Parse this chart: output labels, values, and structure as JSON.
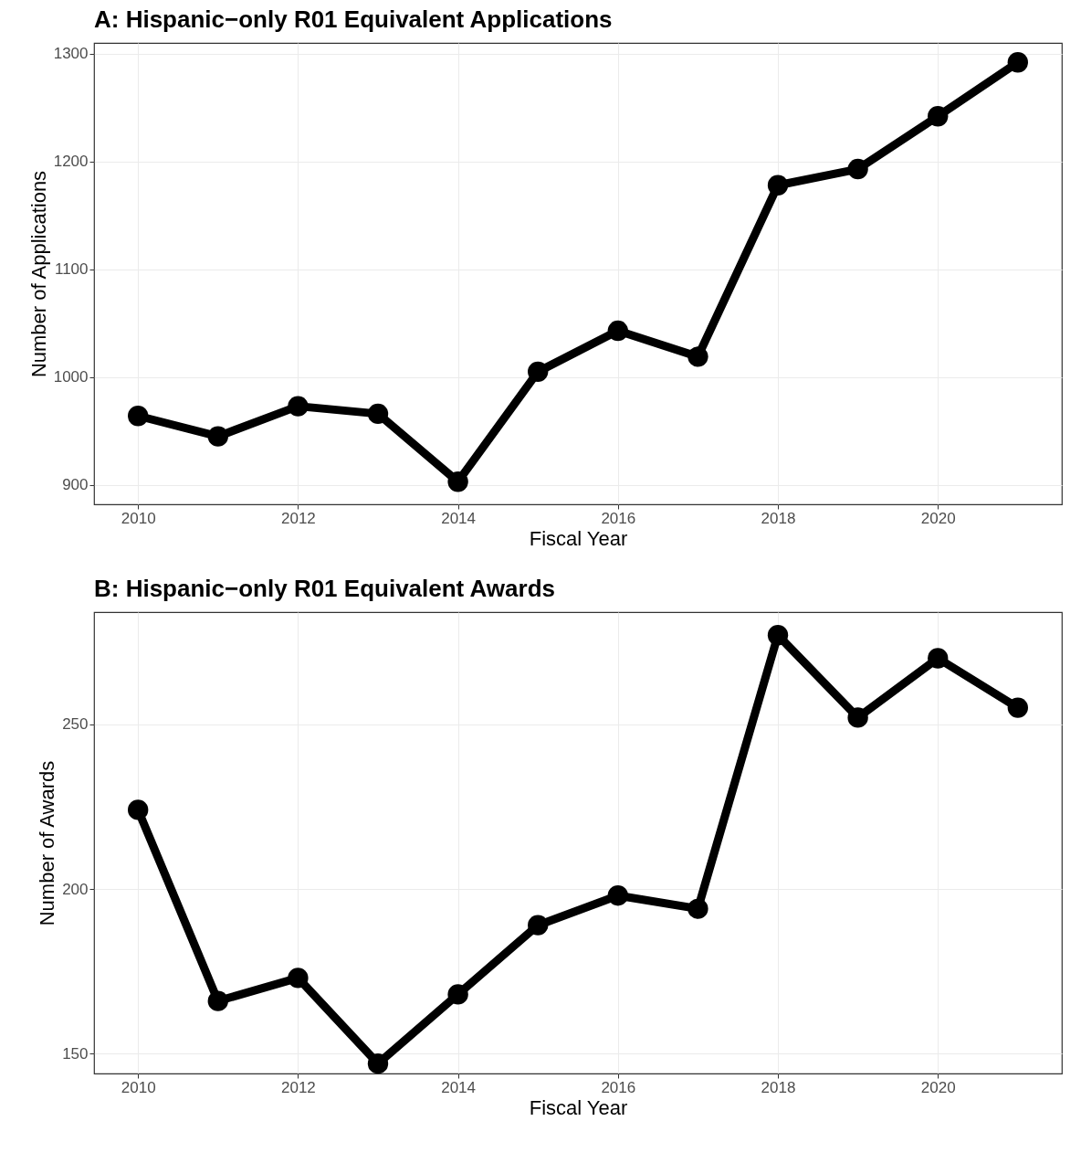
{
  "chart_data": [
    {
      "type": "line",
      "title": "A: Hispanic−only R01 Equivalent Applications",
      "xlabel": "Fiscal Year",
      "ylabel": "Number of Applications",
      "x": [
        2010,
        2011,
        2012,
        2013,
        2014,
        2015,
        2016,
        2017,
        2018,
        2019,
        2020,
        2021
      ],
      "series": [
        {
          "color": "#000000",
          "values": [
            964,
            945,
            973,
            966,
            903,
            1005,
            1043,
            1019,
            1178,
            1193,
            1242,
            1292
          ]
        }
      ],
      "xlim": [
        2009.45,
        2021.55
      ],
      "xticks": [
        2010,
        2012,
        2014,
        2016,
        2018,
        2020
      ],
      "ylim": [
        882,
        1310
      ],
      "yticks": [
        900,
        1000,
        1100,
        1200,
        1300
      ],
      "grid": true,
      "marker": "circle",
      "line_style": "solid"
    },
    {
      "type": "line",
      "title": "B: Hispanic−only R01 Equivalent Awards",
      "xlabel": "Fiscal Year",
      "ylabel": "Number of Awards",
      "x": [
        2010,
        2011,
        2012,
        2013,
        2014,
        2015,
        2016,
        2017,
        2018,
        2019,
        2020,
        2021
      ],
      "series": [
        {
          "color": "#000000",
          "values": [
            224,
            166,
            173,
            147,
            168,
            189,
            198,
            194,
            277,
            252,
            270,
            255
          ]
        }
      ],
      "xlim": [
        2009.45,
        2021.55
      ],
      "xticks": [
        2010,
        2012,
        2014,
        2016,
        2018,
        2020
      ],
      "ylim": [
        144,
        284
      ],
      "yticks": [
        150,
        200,
        250
      ],
      "grid": true,
      "marker": "circle",
      "line_style": "solid"
    }
  ]
}
